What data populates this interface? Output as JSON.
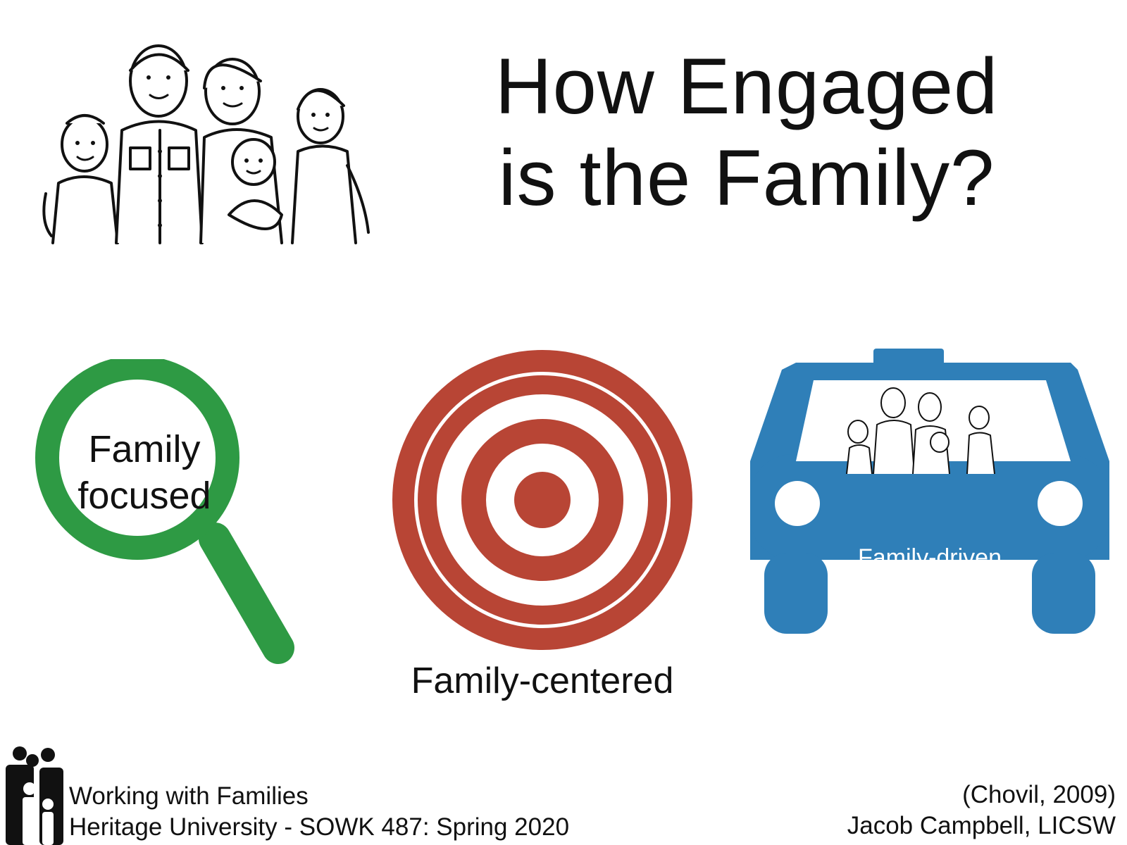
{
  "slide": {
    "title_line1": "How Engaged",
    "title_line2": "is the Family?"
  },
  "items": [
    {
      "label_line1": "Family",
      "label_line2": "focused",
      "icon": "magnifier-icon",
      "color": "#2e9a44"
    },
    {
      "label": "Family-centered",
      "icon": "target-icon",
      "color": "#b84535"
    },
    {
      "label": "Family-driven",
      "icon": "car-icon",
      "color": "#2f7fb8"
    }
  ],
  "footer": {
    "course_line1": "Working with Families",
    "course_line2": "Heritage University - SOWK 487: Spring 2020",
    "citation": "(Chovil, 2009)",
    "author": "Jacob Campbell, LICSW"
  }
}
